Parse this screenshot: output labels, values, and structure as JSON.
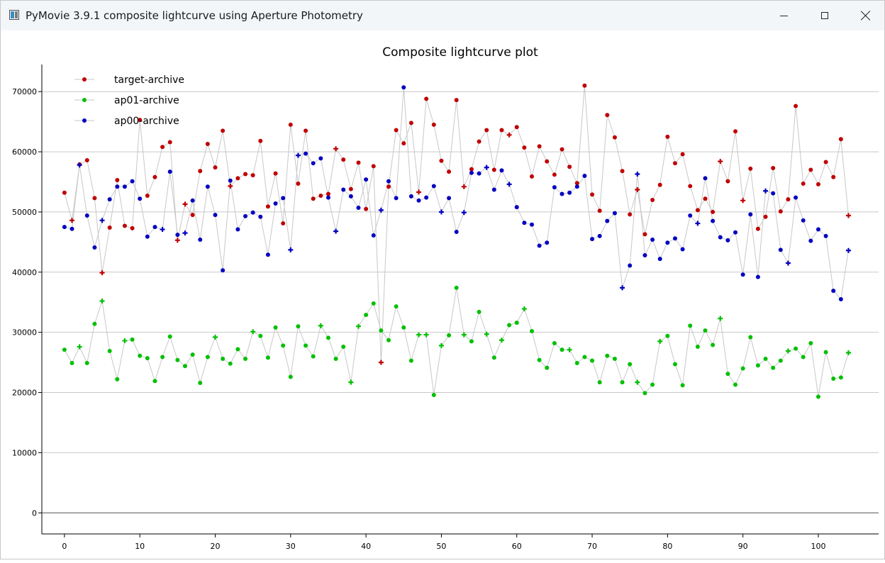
{
  "window": {
    "title": "PyMovie 3.9.1 composite lightcurve using Aperture Photometry"
  },
  "colors": {
    "target": "#c00000",
    "ap01": "#00c000",
    "ap00": "#0000c0",
    "connector": "#c8c8c8",
    "grid": "#c8c8c8"
  },
  "chart_data": {
    "type": "scatter",
    "title": "Composite lightcurve plot",
    "xlabel": "",
    "ylabel": "",
    "xlim": [
      -3,
      108
    ],
    "ylim": [
      -3500,
      74500
    ],
    "x_ticks": [
      0,
      10,
      20,
      30,
      40,
      50,
      60,
      70,
      80,
      90,
      100
    ],
    "y_ticks": [
      0,
      10000,
      20000,
      30000,
      40000,
      50000,
      60000,
      70000
    ],
    "grid": "horizontal",
    "legend_position": "top-left",
    "connector_line": true,
    "series": [
      {
        "name": "target-archive",
        "color": "#c00000",
        "values": [
          53200,
          48600,
          57900,
          58600,
          52300,
          39900,
          47400,
          55300,
          47700,
          47300,
          65300,
          52700,
          55800,
          60800,
          61600,
          45300,
          51300,
          49500,
          56800,
          61300,
          57400,
          63500,
          54300,
          55600,
          56300,
          56100,
          61800,
          50900,
          56400,
          48100,
          64500,
          54700,
          63500,
          52200,
          52700,
          53000,
          60500,
          58700,
          53800,
          58200,
          50500,
          57600,
          25000,
          54200,
          63600,
          61400,
          64800,
          53300,
          68800,
          64500,
          58500,
          56700,
          68600,
          54200,
          57100,
          61700,
          63600,
          57000,
          63600,
          62800,
          64100,
          60700,
          55900,
          60900,
          58400,
          56200,
          60400,
          57500,
          54800,
          71000,
          52900,
          50200,
          66100,
          62400,
          56800,
          49600,
          53700,
          46300,
          52000,
          54500,
          62500,
          58100,
          59600,
          54300,
          50300,
          52200,
          50000,
          58400,
          55100,
          63400,
          51900,
          57200,
          47200,
          49200,
          57300,
          50100,
          52100,
          67600,
          54700,
          57000,
          54600,
          58300,
          55800,
          62100,
          49400
        ],
        "markers": [
          "dot",
          "plus",
          "dot",
          "dot",
          "dot",
          "plus",
          "dot",
          "dot",
          "dot",
          "dot",
          "dot",
          "dot",
          "dot",
          "dot",
          "dot",
          "plus",
          "plus",
          "dot",
          "dot",
          "dot",
          "dot",
          "dot",
          "plus",
          "dot",
          "dot",
          "dot",
          "dot",
          "dot",
          "dot",
          "dot",
          "dot",
          "dot",
          "dot",
          "dot",
          "dot",
          "dot",
          "plus",
          "dot",
          "dot",
          "dot",
          "dot",
          "dot",
          "plus",
          "dot",
          "dot",
          "dot",
          "dot",
          "plus",
          "dot",
          "dot",
          "dot",
          "dot",
          "dot",
          "plus",
          "dot",
          "dot",
          "dot",
          "dot",
          "dot",
          "plus",
          "dot",
          "dot",
          "dot",
          "dot",
          "dot",
          "dot",
          "dot",
          "dot",
          "dot",
          "dot",
          "dot",
          "dot",
          "dot",
          "dot",
          "dot",
          "dot",
          "plus",
          "dot",
          "dot",
          "dot",
          "dot",
          "dot",
          "dot",
          "dot",
          "dot",
          "dot",
          "dot",
          "plus",
          "dot",
          "dot",
          "plus",
          "dot",
          "dot",
          "dot",
          "dot",
          "dot",
          "dot",
          "dot",
          "dot",
          "dot",
          "dot",
          "dot",
          "dot",
          "dot",
          "plus"
        ]
      },
      {
        "name": "ap01-archive",
        "color": "#00c000",
        "values": [
          27100,
          24900,
          27600,
          24900,
          31400,
          35200,
          26900,
          22200,
          28600,
          28800,
          26100,
          25700,
          21900,
          25900,
          29300,
          25400,
          24400,
          26300,
          21600,
          25900,
          29200,
          25600,
          24800,
          27200,
          25600,
          30100,
          29400,
          25800,
          30800,
          27800,
          22600,
          31000,
          27800,
          26000,
          31100,
          29100,
          25600,
          27600,
          21700,
          31000,
          32900,
          34800,
          30300,
          28700,
          34300,
          30800,
          25300,
          29600,
          29600,
          19600,
          27800,
          29500,
          37400,
          29600,
          28500,
          33400,
          29700,
          25800,
          28700,
          31200,
          31600,
          33900,
          30200,
          25400,
          24100,
          28200,
          27100,
          27100,
          24900,
          25900,
          25300,
          21700,
          26100,
          25600,
          21700,
          24700,
          21700,
          19900,
          21300,
          28500,
          29400,
          24700,
          21200,
          31100,
          27600,
          30300,
          27900,
          32300,
          23100,
          21300,
          24000,
          29200,
          24500,
          25600,
          24100,
          25300,
          26900,
          27300,
          25900,
          28200,
          19300,
          26700,
          22300,
          22500,
          26600
        ],
        "markers": [
          "dot",
          "dot",
          "plus",
          "dot",
          "dot",
          "plus",
          "dot",
          "dot",
          "plus",
          "dot",
          "dot",
          "dot",
          "dot",
          "dot",
          "dot",
          "dot",
          "dot",
          "dot",
          "dot",
          "dot",
          "plus",
          "dot",
          "dot",
          "dot",
          "dot",
          "plus",
          "dot",
          "dot",
          "dot",
          "dot",
          "dot",
          "dot",
          "dot",
          "dot",
          "plus",
          "dot",
          "dot",
          "dot",
          "plus",
          "plus",
          "dot",
          "dot",
          "dot",
          "dot",
          "dot",
          "dot",
          "dot",
          "plus",
          "plus",
          "dot",
          "plus",
          "dot",
          "dot",
          "plus",
          "dot",
          "dot",
          "plus",
          "dot",
          "plus",
          "dot",
          "dot",
          "plus",
          "dot",
          "dot",
          "dot",
          "dot",
          "dot",
          "plus",
          "dot",
          "dot",
          "dot",
          "dot",
          "dot",
          "dot",
          "dot",
          "dot",
          "plus",
          "dot",
          "dot",
          "plus",
          "dot",
          "dot",
          "dot",
          "dot",
          "dot",
          "dot",
          "dot",
          "plus",
          "dot",
          "dot",
          "dot",
          "dot",
          "dot",
          "dot",
          "dot",
          "dot",
          "plus",
          "dot",
          "dot",
          "dot",
          "dot",
          "dot",
          "dot",
          "dot",
          "plus"
        ]
      },
      {
        "name": "ap00-archive",
        "color": "#0000c0",
        "values": [
          47500,
          47200,
          57800,
          49400,
          44100,
          48600,
          52100,
          54200,
          54200,
          55100,
          52200,
          45900,
          47500,
          47100,
          56700,
          46200,
          46500,
          51900,
          45400,
          54200,
          49500,
          40300,
          55200,
          47100,
          49300,
          49900,
          49200,
          42900,
          51400,
          52300,
          43700,
          59400,
          59700,
          58100,
          58900,
          52400,
          46800,
          53700,
          52600,
          50700,
          55400,
          46100,
          50300,
          55100,
          52300,
          70700,
          52600,
          51900,
          52400,
          54300,
          50000,
          52300,
          46700,
          49900,
          56500,
          56400,
          57400,
          53700,
          56900,
          54600,
          50800,
          48200,
          47900,
          44400,
          44900,
          54100,
          53000,
          53200,
          54200,
          56000,
          45500,
          46000,
          48500,
          49800,
          37400,
          41100,
          56300,
          42800,
          45400,
          42200,
          44900,
          45600,
          43800,
          49400,
          48100,
          55600,
          48500,
          45800,
          45300,
          46600,
          39600,
          49600,
          39200,
          53500,
          53100,
          43700,
          41500,
          52400,
          48600,
          45200,
          47100,
          46000,
          36900,
          35500,
          43600
        ],
        "markers": [
          "dot",
          "dot",
          "plus",
          "dot",
          "dot",
          "plus",
          "dot",
          "dot",
          "dot",
          "dot",
          "dot",
          "dot",
          "dot",
          "plus",
          "dot",
          "dot",
          "plus",
          "dot",
          "dot",
          "dot",
          "dot",
          "dot",
          "dot",
          "dot",
          "dot",
          "dot",
          "dot",
          "dot",
          "dot",
          "dot",
          "plus",
          "plus",
          "dot",
          "dot",
          "dot",
          "dot",
          "plus",
          "dot",
          "dot",
          "dot",
          "dot",
          "dot",
          "plus",
          "dot",
          "dot",
          "dot",
          "dot",
          "dot",
          "dot",
          "dot",
          "plus",
          "dot",
          "dot",
          "plus",
          "dot",
          "dot",
          "plus",
          "dot",
          "dot",
          "plus",
          "dot",
          "dot",
          "dot",
          "dot",
          "dot",
          "dot",
          "dot",
          "dot",
          "dot",
          "dot",
          "dot",
          "dot",
          "dot",
          "dot",
          "plus",
          "dot",
          "plus",
          "dot",
          "dot",
          "dot",
          "dot",
          "dot",
          "dot",
          "dot",
          "plus",
          "dot",
          "dot",
          "dot",
          "dot",
          "dot",
          "dot",
          "dot",
          "dot",
          "plus",
          "dot",
          "dot",
          "plus",
          "dot",
          "dot",
          "dot",
          "dot",
          "dot",
          "dot",
          "dot",
          "plus"
        ]
      }
    ]
  }
}
